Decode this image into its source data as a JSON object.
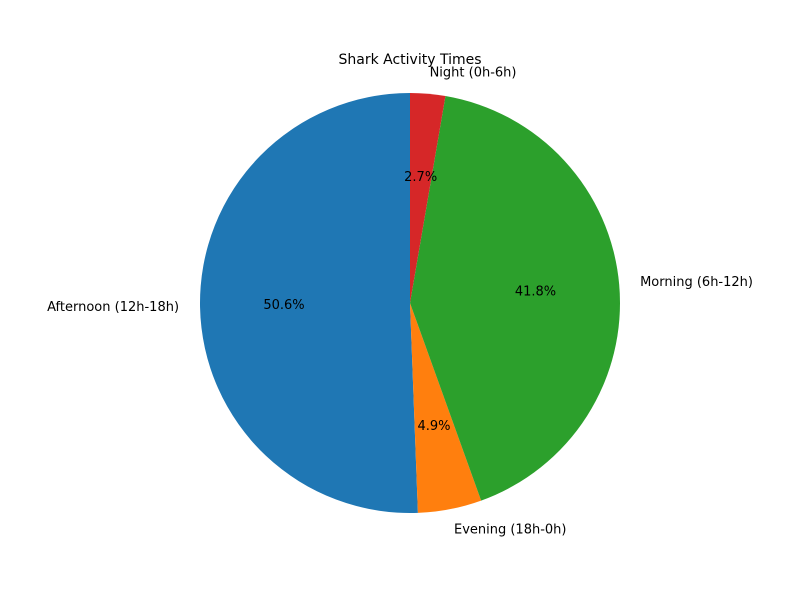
{
  "chart_data": {
    "type": "pie",
    "title": "Shark Activity Times",
    "slices": [
      {
        "label": "Afternoon (12h-18h)",
        "value": 50.6,
        "pct_label": "50.6%",
        "color": "#1f77b4"
      },
      {
        "label": "Evening (18h-0h)",
        "value": 4.9,
        "pct_label": "4.9%",
        "color": "#ff7f0e"
      },
      {
        "label": "Morning (6h-12h)",
        "value": 41.8,
        "pct_label": "41.8%",
        "color": "#2ca02c"
      },
      {
        "label": "Night (0h-6h)",
        "value": 2.7,
        "pct_label": "2.7%",
        "color": "#d62728"
      }
    ],
    "start_angle_deg": 90,
    "direction": "counterclockwise"
  }
}
